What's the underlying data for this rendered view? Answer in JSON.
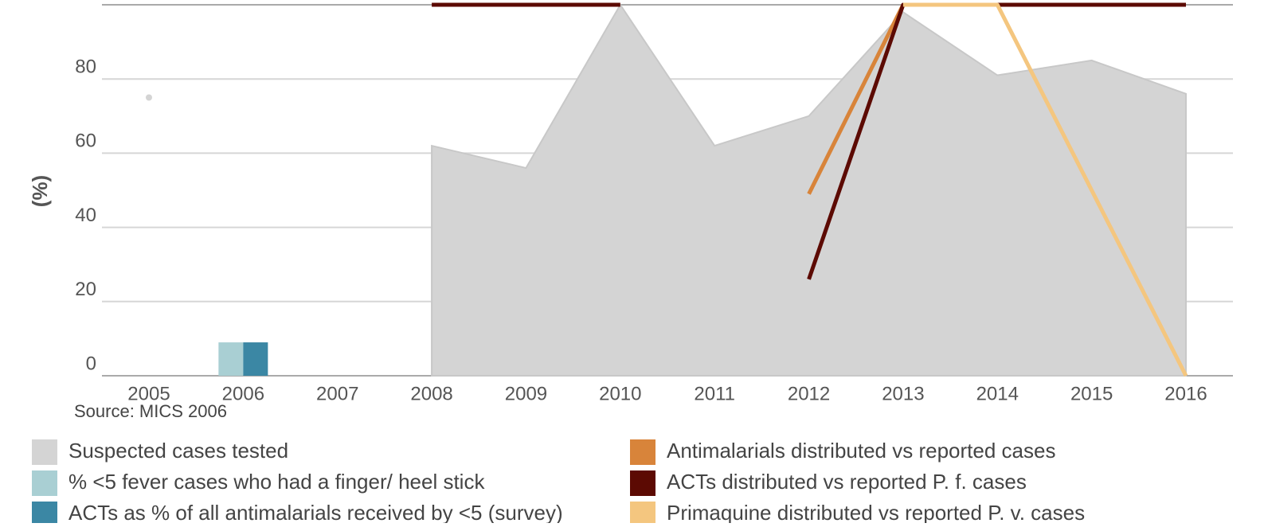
{
  "chart_data": {
    "type": "line",
    "y_label": "(%)",
    "note": "Source: MICS 2006",
    "categories": [
      "2005",
      "2006",
      "2007",
      "2008",
      "2009",
      "2010",
      "2011",
      "2012",
      "2013",
      "2014",
      "2015",
      "2016"
    ],
    "ylim": [
      0,
      100
    ],
    "yticks": [
      0,
      20,
      40,
      60,
      80,
      100
    ],
    "grid": true,
    "series": [
      {
        "name": "Suspected cases tested",
        "type": "area",
        "color": "#d4d4d4",
        "values": [
          75,
          null,
          null,
          62,
          56,
          100,
          62,
          70,
          98,
          81,
          85,
          76
        ]
      },
      {
        "name": "% <5 fever cases who had a finger/ heel stick",
        "type": "bar",
        "color": "#a9cfd3",
        "values": [
          null,
          9,
          null,
          null,
          null,
          null,
          null,
          null,
          null,
          null,
          null,
          null
        ]
      },
      {
        "name": "ACTs as % of all antimalarials received by <5 (survey)",
        "type": "bar",
        "color": "#3b87a4",
        "values": [
          null,
          9,
          null,
          null,
          null,
          null,
          null,
          null,
          null,
          null,
          null,
          null
        ]
      },
      {
        "name": "Antimalarials distributed vs reported cases",
        "type": "line",
        "color": "#d8843a",
        "values": [
          null,
          null,
          null,
          null,
          null,
          null,
          null,
          49,
          100,
          null,
          null,
          null
        ]
      },
      {
        "name": "ACTs distributed vs reported P. f. cases",
        "type": "line",
        "color": "#5c0a03",
        "values": [
          null,
          null,
          null,
          100,
          100,
          100,
          null,
          26,
          100,
          100,
          100,
          100
        ]
      },
      {
        "name": "Primaquine distributed vs reported P. v. cases",
        "type": "line",
        "color": "#f4c67f",
        "values": [
          null,
          null,
          null,
          null,
          null,
          null,
          null,
          null,
          100,
          100,
          50,
          0
        ]
      }
    ]
  }
}
